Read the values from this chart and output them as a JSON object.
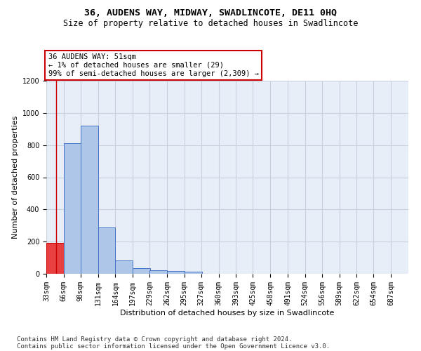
{
  "title1": "36, AUDENS WAY, MIDWAY, SWADLINCOTE, DE11 0HQ",
  "title2": "Size of property relative to detached houses in Swadlincote",
  "xlabel": "Distribution of detached houses by size in Swadlincote",
  "ylabel": "Number of detached properties",
  "footnote1": "Contains HM Land Registry data © Crown copyright and database right 2024.",
  "footnote2": "Contains public sector information licensed under the Open Government Licence v3.0.",
  "annotation_line1": "36 AUDENS WAY: 51sqm",
  "annotation_line2": "← 1% of detached houses are smaller (29)",
  "annotation_line3": "99% of semi-detached houses are larger (2,309) →",
  "bar_color": "#aec6e8",
  "bar_edge_color": "#4472c4",
  "highlight_bar_color": "#e84040",
  "highlight_bar_edge_color": "#cc0000",
  "annotation_box_color": "#ffffff",
  "annotation_box_edge_color": "#cc0000",
  "vline_color": "#cc0000",
  "grid_color": "#c8d0e0",
  "background_color": "#e8eef8",
  "bins": [
    "33sqm",
    "66sqm",
    "98sqm",
    "131sqm",
    "164sqm",
    "197sqm",
    "229sqm",
    "262sqm",
    "295sqm",
    "327sqm",
    "360sqm",
    "393sqm",
    "425sqm",
    "458sqm",
    "491sqm",
    "524sqm",
    "556sqm",
    "589sqm",
    "622sqm",
    "654sqm",
    "687sqm"
  ],
  "bin_edges": [
    33,
    66,
    98,
    131,
    164,
    197,
    229,
    262,
    295,
    327,
    360,
    393,
    425,
    458,
    491,
    524,
    556,
    589,
    622,
    654,
    687
  ],
  "values": [
    190,
    810,
    920,
    290,
    85,
    35,
    20,
    17,
    12,
    0,
    0,
    0,
    0,
    0,
    0,
    0,
    0,
    0,
    0,
    0
  ],
  "ylim": [
    0,
    1200
  ],
  "yticks": [
    0,
    200,
    400,
    600,
    800,
    1000,
    1200
  ],
  "property_sqm": 51,
  "highlight_bin_index": 0,
  "title1_fontsize": 9.5,
  "title2_fontsize": 8.5,
  "annotation_fontsize": 7.5,
  "xlabel_fontsize": 8,
  "ylabel_fontsize": 8,
  "tick_fontsize": 7,
  "footnote_fontsize": 6.5
}
